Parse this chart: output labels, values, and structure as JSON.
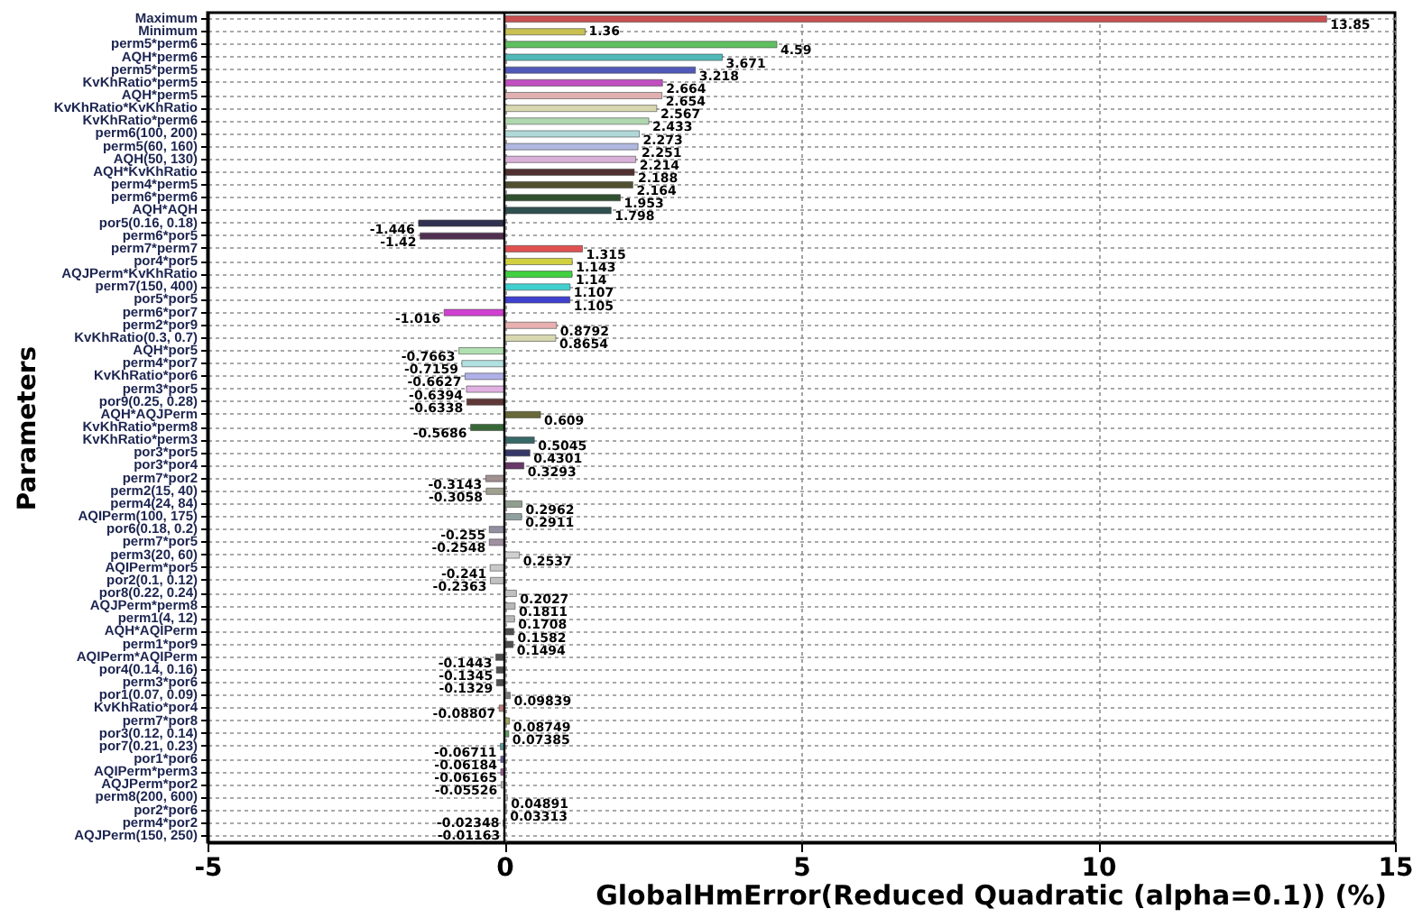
{
  "chart_data": {
    "type": "bar",
    "orientation": "horizontal",
    "xlabel": "GlobalHmError(Reduced Quadratic (alpha=0.1)) (%)",
    "ylabel": "Parameters",
    "categories": [
      "Maximum",
      "Minimum",
      "perm5*perm6",
      "AQH*perm6",
      "perm5*perm5",
      "KvKhRatio*perm5",
      "AQH*perm5",
      "KvKhRatio*KvKhRatio",
      "KvKhRatio*perm6",
      "perm6(100, 200)",
      "perm5(60, 160)",
      "AQH(50, 130)",
      "AQH*KvKhRatio",
      "perm4*perm5",
      "perm6*perm6",
      "AQH*AQH",
      "por5(0.16, 0.18)",
      "perm6*por5",
      "perm7*perm7",
      "por4*por5",
      "AQJPerm*KvKhRatio",
      "perm7(150, 400)",
      "por5*por5",
      "perm6*por7",
      "perm2*por9",
      "KvKhRatio(0.3, 0.7)",
      "AQH*por5",
      "perm4*por7",
      "KvKhRatio*por6",
      "perm3*por5",
      "por9(0.25, 0.28)",
      "AQH*AQJPerm",
      "KvKhRatio*perm8",
      "KvKhRatio*perm3",
      "por3*por5",
      "por3*por4",
      "perm7*por2",
      "perm2(15, 40)",
      "perm4(24, 84)",
      "AQIPerm(100, 175)",
      "por6(0.18, 0.2)",
      "perm7*por5",
      "perm3(20, 60)",
      "AQIPerm*por5",
      "por2(0.1, 0.12)",
      "por8(0.22, 0.24)",
      "AQJPerm*perm8",
      "perm1(4, 12)",
      "AQH*AQIPerm",
      "perm1*por9",
      "AQIPerm*AQIPerm",
      "por4(0.14, 0.16)",
      "perm3*por6",
      "por1(0.07, 0.09)",
      "KvKhRatio*por4",
      "perm7*por8",
      "por3(0.12, 0.14)",
      "por7(0.21, 0.23)",
      "por1*por6",
      "AQIPerm*perm3",
      "AQJPerm*por2",
      "perm8(200, 600)",
      "por2*por6",
      "perm4*por2",
      "AQJPerm(150, 250)"
    ],
    "values": [
      13.85,
      1.36,
      4.59,
      3.671,
      3.218,
      2.664,
      2.654,
      2.567,
      2.433,
      2.273,
      2.251,
      2.214,
      2.188,
      2.164,
      1.953,
      1.798,
      -1.446,
      -1.42,
      1.315,
      1.143,
      1.14,
      1.107,
      1.105,
      -1.016,
      0.8792,
      0.8654,
      -0.7663,
      -0.7159,
      -0.6627,
      -0.6394,
      -0.6338,
      0.609,
      -0.5686,
      0.5045,
      0.4301,
      0.3293,
      -0.3143,
      -0.3058,
      0.2962,
      0.2911,
      -0.255,
      -0.2548,
      0.2537,
      -0.241,
      -0.2363,
      0.2027,
      0.1811,
      0.1708,
      0.1582,
      0.1494,
      -0.1443,
      -0.1345,
      -0.1329,
      0.09839,
      -0.08807,
      0.08749,
      0.07385,
      -0.06711,
      -0.06184,
      -0.06165,
      -0.05526,
      0.04891,
      0.03313,
      -0.02348,
      -0.01163
    ],
    "colors": [
      "#c85050",
      "#c8c050",
      "#60c060",
      "#50b8b8",
      "#5058b8",
      "#c050c0",
      "#e0b0b0",
      "#d8d8b0",
      "#b0d8b0",
      "#b0d8d8",
      "#b0b8e0",
      "#d8b0d8",
      "#503030",
      "#505030",
      "#305030",
      "#305050",
      "#303050",
      "#503050",
      "#e05050",
      "#d0d040",
      "#40d040",
      "#40d0d0",
      "#4040d0",
      "#d040d0",
      "#e8b0b0",
      "#d8d8b0",
      "#b0e0b0",
      "#b0e0e0",
      "#b0b0e8",
      "#e0b0e0",
      "#603838",
      "#686838",
      "#386838",
      "#386868",
      "#383868",
      "#683868",
      "#a09090",
      "#a0a090",
      "#90a090",
      "#90a0a0",
      "#9090a0",
      "#a090a0",
      "#d0d0d0",
      "#c8c8c8",
      "#c0c0c0",
      "#c0c0c0",
      "#b8b8b8",
      "#b8b8b8",
      "#505050",
      "#505050",
      "#505050",
      "#505050",
      "#505050",
      "#808080",
      "#c08080",
      "#a0a060",
      "#60a060",
      "#60a0a0",
      "#6060a0",
      "#a060a0",
      "#c0c0c0",
      "#c0c0c0",
      "#c0c0c0",
      "#c0c0c0",
      "#c0c0c0"
    ],
    "xlim": [
      -5,
      15
    ],
    "xticks": [
      -5,
      0,
      5,
      10,
      15
    ],
    "grid": true,
    "data_labels": true,
    "ref_lines": [
      {
        "axis": "x",
        "value": 0,
        "color": "#000000"
      }
    ]
  }
}
